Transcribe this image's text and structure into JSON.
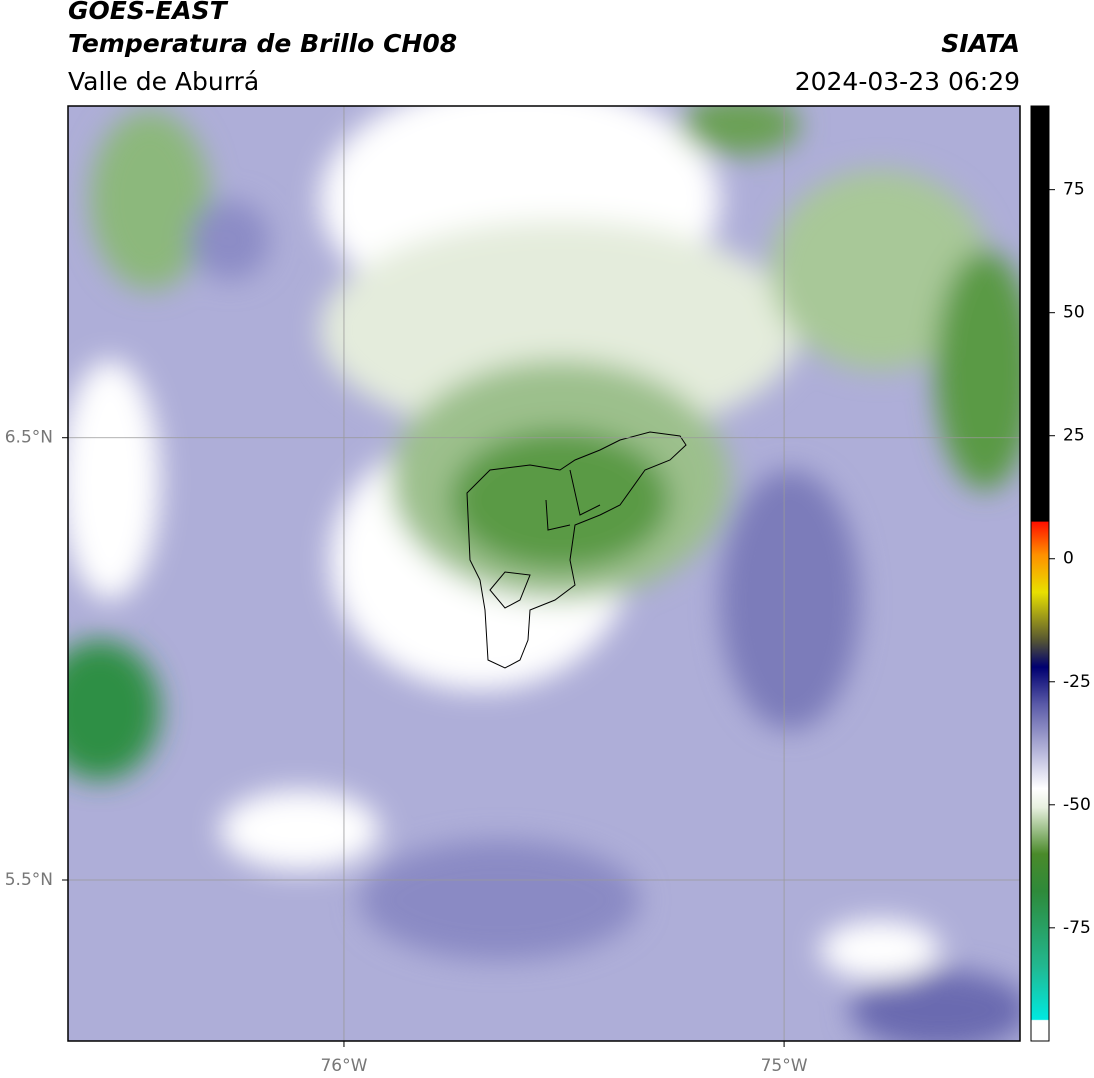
{
  "header": {
    "title": "GOES-EAST",
    "subtitle": "Temperatura de Brillo CH08",
    "region": "Valle de Aburrá",
    "source": "SIATA",
    "datetime": "2024-03-23 06:29"
  },
  "map": {
    "xlim": [
      -76.627,
      -74.464
    ],
    "ylim": [
      5.136,
      7.25
    ],
    "xticks": [
      {
        "value": -76,
        "label": "76°W"
      },
      {
        "value": -75,
        "label": "75°W"
      }
    ],
    "yticks": [
      {
        "value": 6.5,
        "label": "6.5°N"
      },
      {
        "value": 5.5,
        "label": "5.5°N"
      }
    ],
    "grid": true
  },
  "colorbar": {
    "lim": [
      -98,
      92
    ],
    "ticks": [
      75,
      50,
      25,
      0,
      -25,
      -50,
      -75
    ]
  }
}
